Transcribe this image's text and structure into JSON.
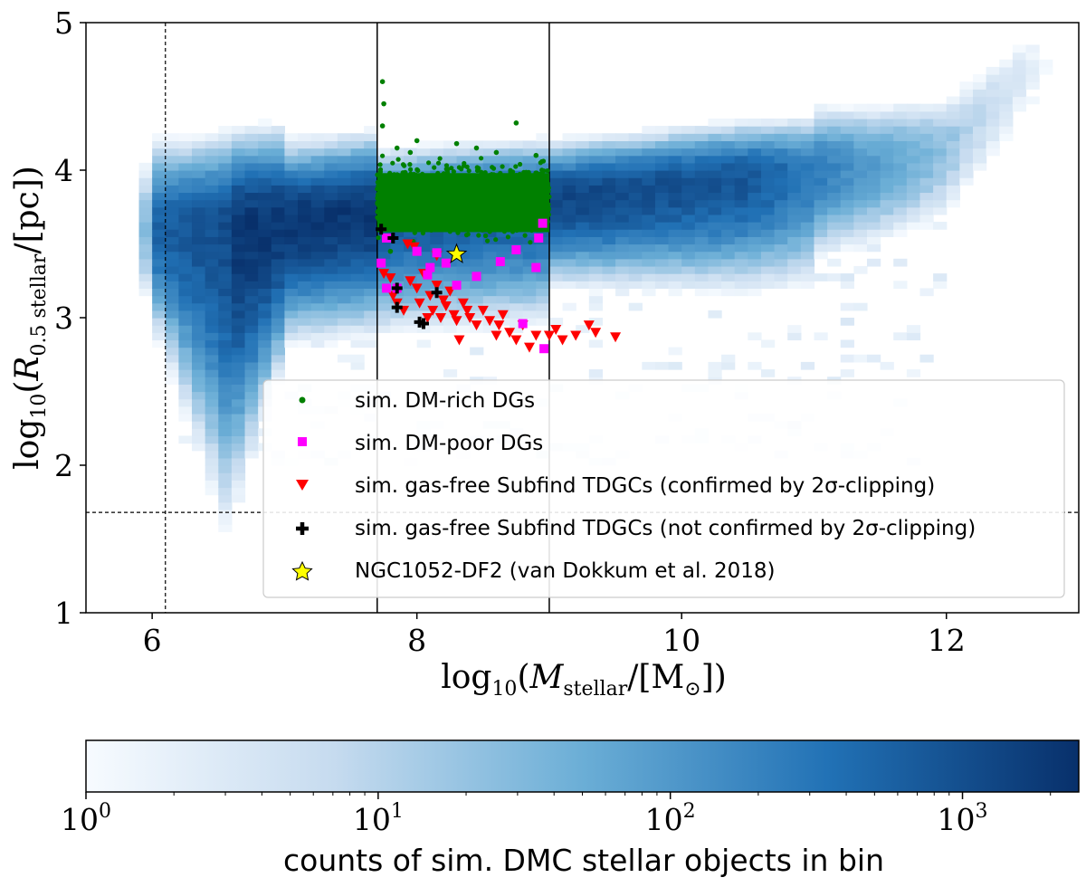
{
  "chart_data": {
    "type": "scatter",
    "x_axis": {
      "label": "log10(Mstellar/[M⊙])",
      "label_parts": {
        "prefix": "log",
        "sub": "10",
        "open": "(",
        "var": "M",
        "var_sub": "stellar",
        "unit": "/[M",
        "unit_sub": "⊙",
        "close": "])"
      },
      "range": [
        5.5,
        13.0
      ],
      "ticks": [
        6,
        8,
        10,
        12
      ],
      "tick_labels": [
        "6",
        "8",
        "10",
        "12"
      ]
    },
    "y_axis": {
      "label": "log10(R0.5stellar/[pc])",
      "label_parts": {
        "prefix": "log",
        "sub": "10",
        "open": "(",
        "var": "R",
        "var_sub": "0.5 stellar",
        "unit": "/[pc])"
      },
      "range": [
        1,
        5
      ],
      "ticks": [
        1,
        2,
        3,
        4,
        5
      ],
      "tick_labels": [
        "1",
        "2",
        "3",
        "4",
        "5"
      ]
    },
    "reference_lines": {
      "solid_vertical_x": [
        7.7,
        9.0
      ],
      "dashed_vertical_x": [
        6.1
      ],
      "dashed_horizontal_y": [
        1.68
      ]
    },
    "background_histogram": {
      "description": "2D histogram of sim. DMC stellar objects",
      "ridge": [
        [
          5.9,
          3.6
        ],
        [
          6.2,
          3.6
        ],
        [
          6.6,
          3.62
        ],
        [
          7.0,
          3.65
        ],
        [
          7.5,
          3.7
        ],
        [
          8.0,
          3.75
        ],
        [
          8.5,
          3.78
        ],
        [
          9.0,
          3.8
        ],
        [
          9.5,
          3.85
        ],
        [
          10.0,
          3.9
        ],
        [
          10.5,
          3.95
        ],
        [
          11.0,
          4.0
        ],
        [
          11.5,
          4.05
        ],
        [
          12.0,
          4.15
        ],
        [
          12.4,
          4.5
        ],
        [
          12.6,
          4.7
        ]
      ]
    },
    "series": [
      {
        "name": "sim. DM-rich DGs",
        "marker": "circle",
        "color": "#008000",
        "cluster": {
          "x_range": [
            7.7,
            9.0
          ],
          "y_range": [
            3.5,
            4.1
          ]
        },
        "points": [
          [
            7.74,
            4.6
          ],
          [
            7.75,
            4.45
          ],
          [
            7.74,
            4.3
          ],
          [
            7.85,
            4.15
          ],
          [
            8.0,
            4.2
          ],
          [
            8.3,
            4.18
          ],
          [
            8.6,
            4.12
          ],
          [
            8.75,
            4.32
          ],
          [
            8.9,
            4.1
          ],
          [
            7.8,
            3.45
          ],
          [
            7.95,
            4.12
          ],
          [
            8.45,
            4.15
          ]
        ]
      },
      {
        "name": "sim. DM-poor DGs",
        "marker": "square",
        "color": "#ff00ff",
        "points": [
          [
            7.77,
            3.54
          ],
          [
            7.73,
            3.37
          ],
          [
            7.77,
            3.2
          ],
          [
            7.85,
            3.2
          ],
          [
            8.08,
            3.29
          ],
          [
            8.1,
            3.34
          ],
          [
            8.15,
            3.44
          ],
          [
            8.22,
            3.37
          ],
          [
            8.3,
            3.22
          ],
          [
            8.45,
            3.28
          ],
          [
            8.63,
            3.38
          ],
          [
            8.75,
            3.46
          ],
          [
            8.8,
            2.96
          ],
          [
            8.9,
            3.34
          ],
          [
            8.92,
            3.54
          ],
          [
            8.95,
            3.64
          ],
          [
            8.96,
            2.79
          ],
          [
            8.0,
            3.45
          ]
        ]
      },
      {
        "name": "sim. gas-free Subfind TDGCs (confirmed by 2σ-clipping)",
        "marker": "triangle-down",
        "color": "#ff0000",
        "points": [
          [
            7.75,
            3.3
          ],
          [
            7.8,
            3.27
          ],
          [
            7.82,
            3.15
          ],
          [
            7.85,
            3.1
          ],
          [
            7.9,
            3.05
          ],
          [
            7.95,
            3.25
          ],
          [
            8.0,
            3.2
          ],
          [
            8.02,
            3.1
          ],
          [
            8.05,
            3.3
          ],
          [
            8.08,
            3.0
          ],
          [
            8.1,
            3.15
          ],
          [
            8.12,
            3.05
          ],
          [
            8.15,
            3.22
          ],
          [
            8.18,
            3.0
          ],
          [
            8.2,
            3.12
          ],
          [
            8.22,
            3.08
          ],
          [
            8.25,
            3.18
          ],
          [
            8.28,
            3.02
          ],
          [
            8.3,
            2.98
          ],
          [
            8.32,
            2.85
          ],
          [
            8.35,
            3.1
          ],
          [
            8.38,
            3.05
          ],
          [
            8.4,
            3.0
          ],
          [
            8.45,
            2.95
          ],
          [
            8.5,
            3.05
          ],
          [
            8.55,
            2.98
          ],
          [
            8.6,
            2.88
          ],
          [
            8.62,
            2.95
          ],
          [
            8.65,
            3.02
          ],
          [
            8.7,
            2.9
          ],
          [
            8.75,
            2.85
          ],
          [
            8.8,
            2.95
          ],
          [
            8.85,
            2.8
          ],
          [
            8.9,
            2.88
          ],
          [
            9.0,
            2.88
          ],
          [
            9.05,
            2.92
          ],
          [
            9.1,
            2.85
          ],
          [
            9.2,
            2.88
          ],
          [
            9.3,
            2.95
          ],
          [
            9.35,
            2.9
          ],
          [
            9.5,
            2.87
          ],
          [
            7.93,
            3.5
          ],
          [
            7.98,
            3.48
          ],
          [
            8.15,
            3.42
          ]
        ]
      },
      {
        "name": "sim. gas-free Subfind TDGCs (not confirmed by 2σ-clipping)",
        "marker": "plus",
        "color": "#000000",
        "points": [
          [
            7.73,
            3.6
          ],
          [
            7.82,
            3.54
          ],
          [
            7.85,
            3.2
          ],
          [
            7.85,
            3.07
          ],
          [
            8.02,
            2.97
          ],
          [
            8.05,
            2.96
          ],
          [
            8.15,
            3.17
          ]
        ]
      },
      {
        "name": "NGC1052-DF2 (van Dokkum et al. 2018)",
        "marker": "star",
        "color": "#ffff00",
        "points": [
          [
            8.3,
            3.43
          ]
        ]
      }
    ],
    "legend": {
      "placement": "lower-right"
    },
    "colorbar": {
      "label": "counts of sim. DMC stellar objects in bin",
      "scale": "log",
      "range": [
        1,
        2500
      ],
      "ticks": [
        {
          "base": "10",
          "exp": "0"
        },
        {
          "base": "10",
          "exp": "1"
        },
        {
          "base": "10",
          "exp": "2"
        },
        {
          "base": "10",
          "exp": "3"
        }
      ],
      "colors": [
        "#f7fbff",
        "#c6dbef",
        "#6baed6",
        "#2171b5",
        "#08306b"
      ]
    }
  }
}
